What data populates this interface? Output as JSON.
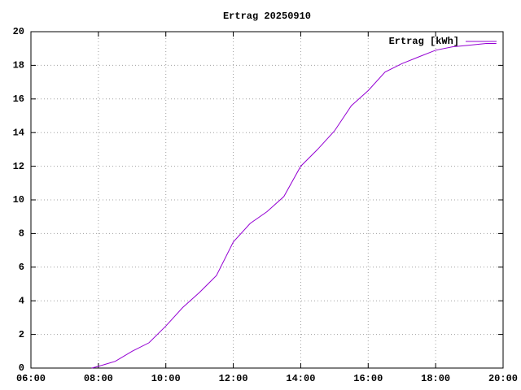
{
  "chart_data": {
    "type": "line",
    "title": "Ertrag 20250910",
    "x": [
      7.8,
      8.0,
      8.5,
      9.0,
      9.5,
      10.0,
      10.5,
      11.0,
      11.5,
      12.0,
      12.5,
      13.0,
      13.5,
      14.0,
      14.5,
      15.0,
      15.5,
      16.0,
      16.5,
      17.0,
      17.5,
      18.0,
      18.5,
      19.0,
      19.5,
      19.8
    ],
    "series": [
      {
        "name": "Ertrag [kWh]",
        "color": "#9400d3",
        "values": [
          0,
          0.1,
          0.4,
          1.0,
          1.5,
          2.5,
          3.6,
          4.5,
          5.5,
          7.5,
          8.6,
          9.3,
          10.2,
          12.0,
          13.0,
          14.1,
          15.6,
          16.5,
          17.6,
          18.1,
          18.5,
          18.9,
          19.1,
          19.2,
          19.3,
          19.3
        ]
      }
    ],
    "xlim": [
      6,
      20
    ],
    "xticks": [
      {
        "value": 6,
        "label": "06:00"
      },
      {
        "value": 8,
        "label": "08:00"
      },
      {
        "value": 10,
        "label": "10:00"
      },
      {
        "value": 12,
        "label": "12:00"
      },
      {
        "value": 14,
        "label": "14:00"
      },
      {
        "value": 16,
        "label": "16:00"
      },
      {
        "value": 18,
        "label": "18:00"
      },
      {
        "value": 20,
        "label": "20:00"
      }
    ],
    "ylim": [
      0,
      20
    ],
    "yticks": [
      0,
      2,
      4,
      6,
      8,
      10,
      12,
      14,
      16,
      18,
      20
    ],
    "grid": true,
    "legend": "top-right"
  }
}
